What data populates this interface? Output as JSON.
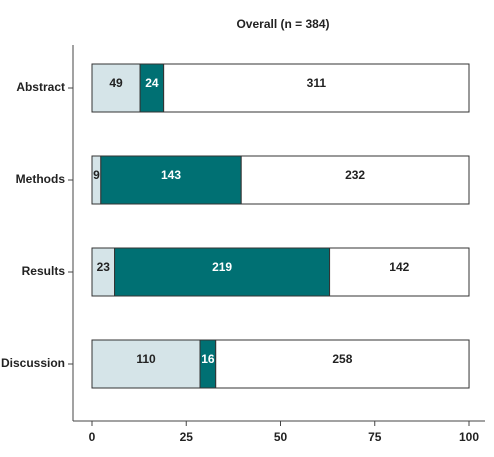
{
  "chart_data": {
    "type": "stacked-bar-horizontal",
    "title": "Overall (n = 384)",
    "categories": [
      "Abstract",
      "Methods",
      "Results",
      "Discussion"
    ],
    "series": [
      {
        "color": "#d5e4e8",
        "values": [
          12.76,
          2.34,
          5.99,
          28.65
        ],
        "value_labels": [
          "49",
          "9",
          "23",
          "110"
        ]
      },
      {
        "color": "#007073",
        "values": [
          6.25,
          37.24,
          57.03,
          4.17
        ],
        "value_labels": [
          "24",
          "143",
          "219",
          "16"
        ]
      },
      {
        "color": "#ffffff",
        "values": [
          80.99,
          60.42,
          36.98,
          67.19
        ],
        "value_labels": [
          "311",
          "232",
          "142",
          "258"
        ]
      }
    ],
    "xlim": [
      0,
      100
    ],
    "xticks": [
      0,
      25,
      50,
      75,
      100
    ]
  }
}
